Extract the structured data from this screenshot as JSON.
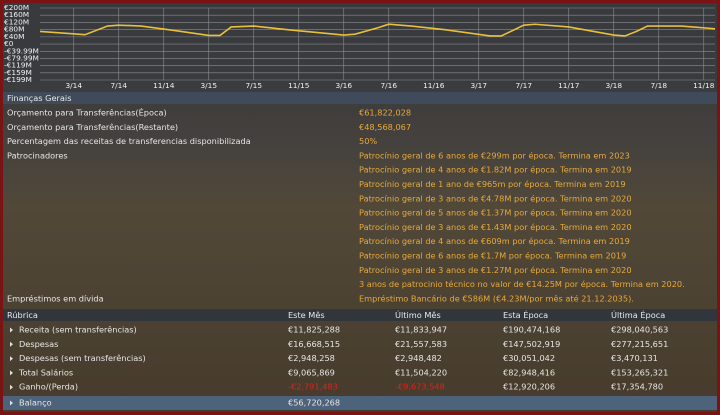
{
  "chart_data": {
    "type": "line",
    "x": [
      -3,
      1,
      3,
      4,
      6,
      9,
      12,
      13,
      14,
      16,
      19,
      24,
      25,
      27,
      28,
      30,
      33,
      37,
      38,
      40,
      41,
      44,
      48,
      49,
      50,
      51,
      54,
      55,
      57
    ],
    "series": [
      {
        "color": "#e8c03c",
        "values": [
          70,
          52,
          100,
          105,
          100,
          75,
          48,
          48,
          95,
          100,
          80,
          50,
          55,
          90,
          110,
          100,
          80,
          45,
          45,
          105,
          110,
          95,
          50,
          45,
          70,
          100,
          100,
          95,
          85
        ]
      }
    ],
    "xlim": [
      -3,
      57
    ],
    "xticks": [
      {
        "value": 0,
        "label": "3/14"
      },
      {
        "value": 4,
        "label": "7/14"
      },
      {
        "value": 8,
        "label": "11/14"
      },
      {
        "value": 12,
        "label": "3/15"
      },
      {
        "value": 16,
        "label": "7/15"
      },
      {
        "value": 20,
        "label": "11/15"
      },
      {
        "value": 24,
        "label": "3/16"
      },
      {
        "value": 28,
        "label": "7/16"
      },
      {
        "value": 32,
        "label": "11/16"
      },
      {
        "value": 36,
        "label": "3/17"
      },
      {
        "value": 40,
        "label": "7/17"
      },
      {
        "value": 44,
        "label": "11/17"
      },
      {
        "value": 48,
        "label": "3/18"
      },
      {
        "value": 52,
        "label": "7/18"
      },
      {
        "value": 56,
        "label": "11/18"
      }
    ],
    "ylim": [
      -199,
      200
    ],
    "yticks": [
      {
        "value": 200,
        "label": "€200M"
      },
      {
        "value": 160,
        "label": "€160M"
      },
      {
        "value": 120,
        "label": "€120M"
      },
      {
        "value": 80,
        "label": "€80M"
      },
      {
        "value": 40,
        "label": "€40M"
      },
      {
        "value": 0,
        "label": "€0"
      },
      {
        "value": -39.99,
        "label": "-€39.99M"
      },
      {
        "value": -79.99,
        "label": "-€79.99M"
      },
      {
        "value": -119,
        "label": "-€119M"
      },
      {
        "value": -159,
        "label": "-€159M"
      },
      {
        "value": -199,
        "label": "-€199M"
      }
    ],
    "grid": true
  },
  "finances": {
    "title": "Finanças Gerais",
    "rows": [
      {
        "label": "Orçamento para Transferências(Época)",
        "value": "€61,822,028"
      },
      {
        "label": "Orçamento para Transferências(Restante)",
        "value": "€48,568,067"
      },
      {
        "label": "Percentagem das receitas de transferencias disponibilizada",
        "value": "50%"
      }
    ],
    "sponsors_label": "Patrocinadores",
    "sponsors": [
      "Patrocínio geral de 6 anos de €299m por época. Termina em 2023",
      "Patrocínio geral de 4 anos de €1.82M por época. Termina em 2019",
      "Patrocínio geral de 1 ano de €965m por época. Termina em 2019",
      "Patrocínio geral de 3 anos de €4.78M por época. Termina em 2020",
      "Patrocínio geral de 5 anos de €1.37M por época. Termina em 2020",
      "Patrocínio geral de 3 anos de €1.43M por época. Termina em 2020",
      "Patrocínio geral de 4 anos de €609m por época. Termina em 2019",
      "Patrocínio geral de 6 anos de €1.7M por época. Termina em 2019",
      "Patrocínio geral de 3 anos de €1.27M por época. Termina em 2020",
      "3 anos de patrocinio técnico no valor de €14.25M por época. Termina em 2020."
    ],
    "loans_label": "Empréstimos em dívida",
    "loans_value": "Empréstimo Bancário de €586M (€4.23M/por mês até 21.12.2035)."
  },
  "table": {
    "header": [
      "Rúbrica",
      "Este Mês",
      "Último Mês",
      "Esta Época",
      "Última Época"
    ],
    "rows": [
      [
        "Receita (sem transferências)",
        "€11,825,288",
        "€11,833,947",
        "€190,474,168",
        "€298,040,563"
      ],
      [
        "Despesas",
        "€16,668,515",
        "€21,557,583",
        "€147,502,919",
        "€277,215,651"
      ],
      [
        "Despesas (sem transferências)",
        "€2,948,258",
        "€2,948,482",
        "€30,051,042",
        "€3,470,131"
      ],
      [
        "Total Salários",
        "€9,065,869",
        "€11,504,220",
        "€82,948,416",
        "€153,265,321"
      ],
      [
        "Ganho/(Perda)",
        "-€2,791,483",
        "-€9,673,548",
        "€12,920,206",
        "€17,354,780"
      ]
    ],
    "balance": {
      "label": "Balanço",
      "value": "€56,720,268"
    }
  }
}
